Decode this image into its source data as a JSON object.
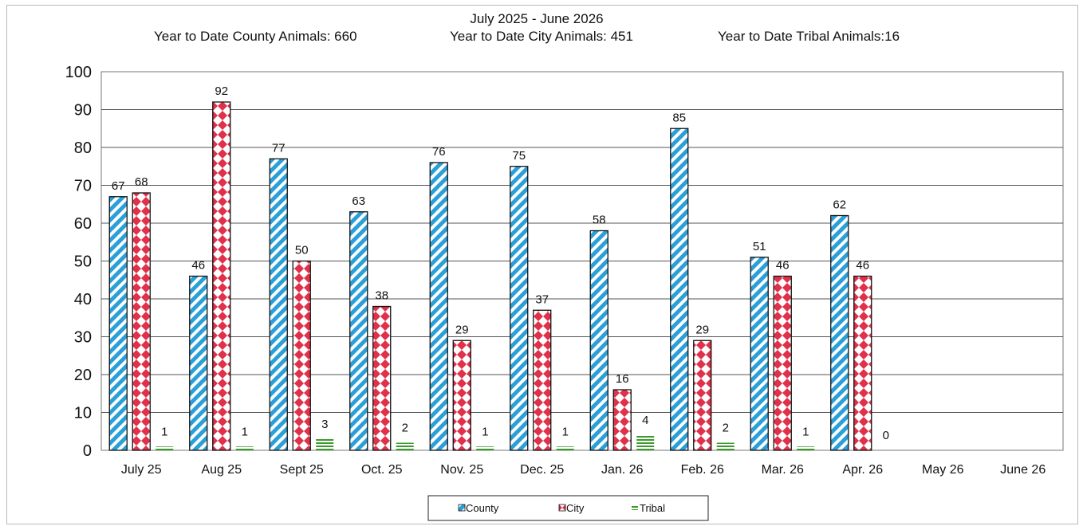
{
  "chart_data": {
    "type": "bar",
    "title": "July 2025 - June 2026",
    "subtitle": {
      "county": "Year to Date County Animals: 660",
      "city": "Year to Date City Animals: 451",
      "tribal": "Year to Date Tribal Animals:16"
    },
    "categories": [
      "July 25",
      "Aug 25",
      "Sept 25",
      "Oct. 25",
      "Nov. 25",
      "Dec. 25",
      "Jan. 26",
      "Feb. 26",
      "Mar. 26",
      "Apr. 26",
      "May 26",
      "June 26"
    ],
    "series": [
      {
        "name": "County",
        "color": "#2a9fd8",
        "values": [
          67,
          46,
          77,
          63,
          76,
          75,
          58,
          85,
          51,
          62,
          null,
          null
        ]
      },
      {
        "name": "City",
        "color": "#e0304a",
        "values": [
          68,
          92,
          50,
          38,
          29,
          37,
          16,
          29,
          46,
          46,
          null,
          null
        ]
      },
      {
        "name": "Tribal",
        "color": "#3a9a2a",
        "values": [
          1,
          1,
          3,
          2,
          1,
          1,
          4,
          2,
          1,
          0,
          null,
          null
        ]
      }
    ],
    "yticks": [
      "0",
      "10",
      "20",
      "30",
      "40",
      "50",
      "60",
      "70",
      "80",
      "90",
      "100"
    ],
    "ylim": [
      0,
      100
    ],
    "grid": true,
    "legend_position": "bottom"
  }
}
